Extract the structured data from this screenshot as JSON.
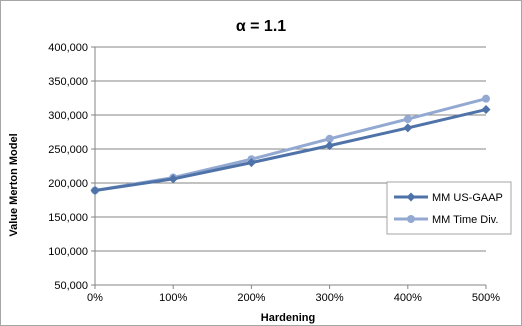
{
  "chart_data": {
    "type": "line",
    "title": "α = 1.1",
    "xlabel": "Hardening",
    "ylabel": "Value Merton Model",
    "categories": [
      "0%",
      "100%",
      "200%",
      "300%",
      "400%",
      "500%"
    ],
    "ylim": [
      50000,
      400000
    ],
    "y_ticks": [
      "50,000",
      "100,000",
      "150,000",
      "200,000",
      "250,000",
      "300,000",
      "350,000",
      "400,000"
    ],
    "grid": true,
    "legend_position": "right",
    "series": [
      {
        "name": "MM US-GAAP",
        "color": "#4f73a8",
        "marker": "diamond",
        "values": [
          189000,
          206000,
          230000,
          255000,
          281000,
          308000
        ]
      },
      {
        "name": "MM Time Div.",
        "color": "#93a9d2",
        "marker": "circle",
        "values": [
          189000,
          208000,
          235000,
          265000,
          294000,
          324000
        ]
      }
    ]
  }
}
